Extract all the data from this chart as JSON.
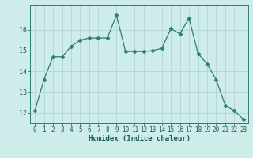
{
  "x": [
    0,
    1,
    2,
    3,
    4,
    5,
    6,
    7,
    8,
    9,
    10,
    11,
    12,
    13,
    14,
    15,
    16,
    17,
    18,
    19,
    20,
    21,
    22,
    23
  ],
  "y": [
    12.1,
    13.6,
    14.7,
    14.7,
    15.2,
    15.5,
    15.6,
    15.6,
    15.6,
    16.7,
    14.95,
    14.95,
    14.95,
    15.0,
    15.1,
    16.05,
    15.8,
    16.55,
    14.85,
    14.35,
    13.6,
    12.35,
    12.1,
    11.7
  ],
  "line_color": "#2e7d6e",
  "marker": "D",
  "marker_size": 2.5,
  "bg_color": "#ceecea",
  "grid_color": "#b8d8d6",
  "xlabel": "Humidex (Indice chaleur)",
  "ylim": [
    11.5,
    17.2
  ],
  "yticks": [
    12,
    13,
    14,
    15,
    16
  ],
  "xticks": [
    0,
    1,
    2,
    3,
    4,
    5,
    6,
    7,
    8,
    9,
    10,
    11,
    12,
    13,
    14,
    15,
    16,
    17,
    18,
    19,
    20,
    21,
    22,
    23
  ],
  "tick_fontsize": 5.5,
  "xlabel_fontsize": 6.5,
  "xlabel_fontweight": "bold"
}
